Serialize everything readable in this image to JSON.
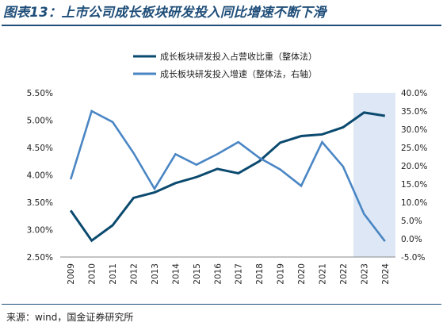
{
  "title": "图表13：上市公司成长板块研发投入同比增速不断下滑",
  "source": "来源：wind，国金证券研究所",
  "chart_data": {
    "type": "line",
    "categories": [
      "2009",
      "2010",
      "2011",
      "2012",
      "2013",
      "2014",
      "2015",
      "2016",
      "2017",
      "2018",
      "2019",
      "2020",
      "2021",
      "2022",
      "2023",
      "2024"
    ],
    "highlight_categories": [
      "2023",
      "2024"
    ],
    "legend_position": "top-center",
    "grid": false,
    "series": [
      {
        "name": "成长板块研发投入占营收比重（整体法）",
        "axis": "left",
        "color": "#0b4a6f",
        "values": [
          3.35,
          2.8,
          3.08,
          3.58,
          3.68,
          3.85,
          3.96,
          4.11,
          4.03,
          4.25,
          4.59,
          4.71,
          4.74,
          4.87,
          5.14,
          5.08
        ]
      },
      {
        "name": "成长板块研发投入增速（整体法，右轴）",
        "axis": "right",
        "color": "#4a86c4",
        "values": [
          16.3,
          35.0,
          32.0,
          23.5,
          13.7,
          23.2,
          20.3,
          23.2,
          26.5,
          22.2,
          19.0,
          14.5,
          26.5,
          19.8,
          6.8,
          -0.7
        ]
      }
    ],
    "y_left": {
      "ylim": [
        2.5,
        5.5
      ],
      "ticks": [
        2.5,
        3.0,
        3.5,
        4.0,
        4.5,
        5.0,
        5.5
      ],
      "tick_labels": [
        "2.50%",
        "3.00%",
        "3.50%",
        "4.00%",
        "4.50%",
        "5.00%",
        "5.50%"
      ]
    },
    "y_right": {
      "ylim": [
        -5,
        40
      ],
      "ticks": [
        -5,
        0,
        5,
        10,
        15,
        20,
        25,
        30,
        35,
        40
      ],
      "tick_labels": [
        "-5.0%",
        "0.0%",
        "5.0%",
        "10.0%",
        "15.0%",
        "20.0%",
        "25.0%",
        "30.0%",
        "35.0%",
        "40.0%"
      ]
    }
  },
  "colors": {
    "highlight_band": "#dde7f5",
    "axis": "#888888",
    "text": "#222222",
    "title": "#1f4e79"
  }
}
